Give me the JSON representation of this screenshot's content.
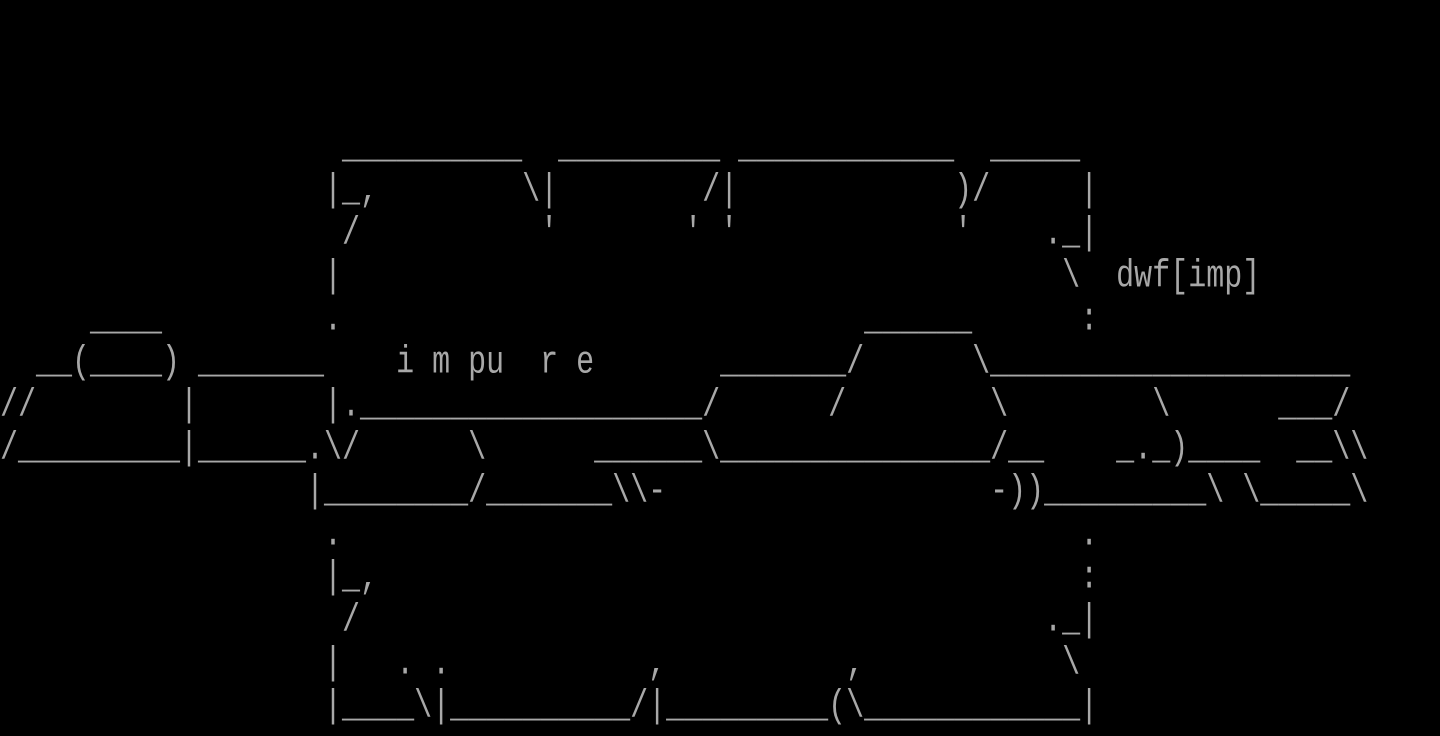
{
  "terminal": {
    "foreground": "#a8a8a8",
    "background": "#000000",
    "lines": [
      "                   __________  _________ ____________  _____",
      "                  |_,        \\|        /|            )/     |",
      "                   /          '       ' '            '    ._|",
      "                  |                                        \\  dwf[imp]",
      "     ____         .                             ______      :",
      "  __(____) _______    i m pu  r e       _______/      \\____________________",
      "//        |       |.___________________/      /        \\        \\      ___/",
      "/_________|______.\\/      \\      ______\\_______________/__    _._)____  __\\\\",
      "                 |________/_______\\\\-                  -))_________\\ \\_____\\",
      "                  .                                         .",
      "                  |_,                                       :",
      "                   /                                      ._|",
      "                  |   . .           ,          ,           \\",
      "                  |____\\|__________/|_________(\\____________|"
    ]
  }
}
